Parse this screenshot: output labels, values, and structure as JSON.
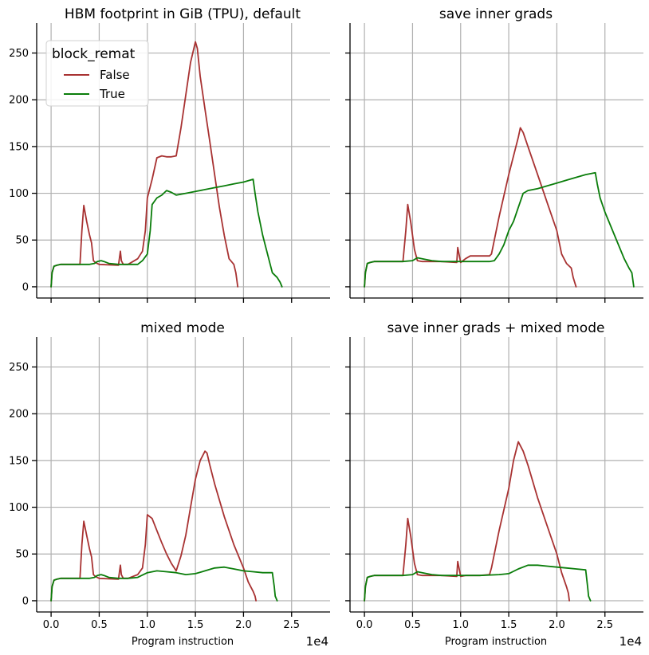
{
  "figure": {
    "x_offset_label": "1e4",
    "xlabel": "Program instruction"
  },
  "chart_data": [
    {
      "type": "line",
      "title": "HBM footprint in GiB (TPU), default",
      "xlabel": "",
      "ylabel": "",
      "xlim": [
        -0.15,
        2.9
      ],
      "ylim": [
        -12,
        282
      ],
      "xticks": [
        0.0,
        0.5,
        1.0,
        1.5,
        2.0,
        2.5
      ],
      "yticks": [
        0,
        50,
        100,
        150,
        200,
        250
      ],
      "show_yticklabels": true,
      "show_xticklabels": false,
      "grid": true,
      "legend": {
        "title": "block_remat",
        "placement": "top-left",
        "entries": [
          "False",
          "True"
        ]
      },
      "series": [
        {
          "name": "False",
          "color": "#a83232",
          "x": [
            0.0,
            0.01,
            0.03,
            0.06,
            0.1,
            0.15,
            0.2,
            0.25,
            0.3,
            0.32,
            0.34,
            0.37,
            0.4,
            0.42,
            0.44,
            0.46,
            0.5,
            0.7,
            0.72,
            0.73,
            0.75,
            0.8,
            0.9,
            0.95,
            0.98,
            1.0,
            1.05,
            1.1,
            1.15,
            1.2,
            1.25,
            1.3,
            1.35,
            1.4,
            1.45,
            1.5,
            1.52,
            1.55,
            1.6,
            1.65,
            1.7,
            1.75,
            1.8,
            1.85,
            1.9,
            1.92,
            1.94
          ],
          "y": [
            0,
            15,
            22,
            23,
            24,
            24,
            24,
            24,
            24,
            60,
            87,
            70,
            55,
            47,
            28,
            26,
            24,
            23,
            38,
            28,
            24,
            24,
            30,
            38,
            60,
            95,
            115,
            138,
            140,
            139,
            139,
            140,
            170,
            205,
            240,
            262,
            255,
            225,
            190,
            155,
            120,
            85,
            55,
            30,
            24,
            15,
            0
          ]
        },
        {
          "name": "True",
          "color": "#0a7d0a",
          "x": [
            0.0,
            0.01,
            0.03,
            0.06,
            0.1,
            0.2,
            0.3,
            0.4,
            0.45,
            0.48,
            0.52,
            0.55,
            0.6,
            0.7,
            0.8,
            0.9,
            0.95,
            1.0,
            1.03,
            1.05,
            1.1,
            1.15,
            1.2,
            1.25,
            1.3,
            1.4,
            1.5,
            1.6,
            1.7,
            1.8,
            1.9,
            2.0,
            2.1,
            2.12,
            2.15,
            2.2,
            2.3,
            2.35,
            2.38,
            2.4
          ],
          "y": [
            0,
            15,
            22,
            23,
            24,
            24,
            24,
            24,
            25,
            27,
            28,
            27,
            25,
            24,
            24,
            24,
            28,
            35,
            60,
            88,
            95,
            98,
            103,
            101,
            98,
            100,
            102,
            104,
            106,
            108,
            110,
            112,
            115,
            100,
            80,
            55,
            15,
            10,
            5,
            0
          ]
        }
      ]
    },
    {
      "type": "line",
      "title": "save inner grads",
      "xlabel": "",
      "ylabel": "",
      "xlim": [
        -0.15,
        2.9
      ],
      "ylim": [
        -12,
        282
      ],
      "xticks": [
        0.0,
        0.5,
        1.0,
        1.5,
        2.0,
        2.5
      ],
      "yticks": [
        0,
        50,
        100,
        150,
        200,
        250
      ],
      "show_yticklabels": false,
      "show_xticklabels": false,
      "grid": true,
      "series": [
        {
          "name": "False",
          "color": "#a83232",
          "x": [
            0.0,
            0.01,
            0.03,
            0.06,
            0.1,
            0.2,
            0.3,
            0.4,
            0.43,
            0.45,
            0.48,
            0.5,
            0.52,
            0.55,
            0.6,
            0.8,
            0.96,
            0.97,
            1.0,
            1.05,
            1.1,
            1.2,
            1.3,
            1.32,
            1.4,
            1.5,
            1.6,
            1.62,
            1.65,
            1.7,
            1.8,
            1.9,
            2.0,
            2.05,
            2.1,
            2.15,
            2.17,
            2.2
          ],
          "y": [
            0,
            15,
            25,
            26,
            27,
            27,
            27,
            27,
            60,
            88,
            70,
            55,
            40,
            28,
            27,
            27,
            26,
            42,
            26,
            30,
            33,
            33,
            33,
            35,
            75,
            120,
            160,
            170,
            165,
            150,
            120,
            90,
            60,
            35,
            25,
            20,
            10,
            0
          ]
        },
        {
          "name": "True",
          "color": "#0a7d0a",
          "x": [
            0.0,
            0.01,
            0.03,
            0.06,
            0.1,
            0.2,
            0.3,
            0.4,
            0.5,
            0.55,
            0.6,
            0.7,
            0.8,
            1.0,
            1.2,
            1.3,
            1.35,
            1.4,
            1.45,
            1.5,
            1.55,
            1.6,
            1.65,
            1.7,
            1.8,
            1.9,
            2.0,
            2.1,
            2.2,
            2.3,
            2.4,
            2.42,
            2.45,
            2.5,
            2.6,
            2.7,
            2.75,
            2.78,
            2.8
          ],
          "y": [
            0,
            15,
            25,
            26,
            27,
            27,
            27,
            27,
            28,
            31,
            30,
            28,
            27,
            27,
            27,
            27,
            28,
            35,
            45,
            60,
            70,
            85,
            100,
            103,
            105,
            108,
            111,
            114,
            117,
            120,
            122,
            110,
            95,
            80,
            55,
            30,
            20,
            15,
            0
          ]
        }
      ]
    },
    {
      "type": "line",
      "title": "mixed mode",
      "xlabel": "Program instruction",
      "ylabel": "",
      "xlim": [
        -0.15,
        2.9
      ],
      "ylim": [
        -12,
        282
      ],
      "xticks": [
        0.0,
        0.5,
        1.0,
        1.5,
        2.0,
        2.5
      ],
      "yticks": [
        0,
        50,
        100,
        150,
        200,
        250
      ],
      "show_yticklabels": true,
      "show_xticklabels": true,
      "grid": true,
      "series": [
        {
          "name": "False",
          "color": "#a83232",
          "x": [
            0.0,
            0.01,
            0.03,
            0.06,
            0.1,
            0.2,
            0.3,
            0.32,
            0.34,
            0.37,
            0.4,
            0.42,
            0.44,
            0.46,
            0.5,
            0.7,
            0.72,
            0.73,
            0.75,
            0.8,
            0.9,
            0.95,
            0.98,
            1.0,
            1.05,
            1.1,
            1.15,
            1.2,
            1.25,
            1.3,
            1.35,
            1.4,
            1.45,
            1.5,
            1.55,
            1.6,
            1.62,
            1.65,
            1.7,
            1.8,
            1.9,
            2.0,
            2.05,
            2.1,
            2.12,
            2.13
          ],
          "y": [
            0,
            15,
            22,
            23,
            24,
            24,
            24,
            60,
            85,
            70,
            55,
            47,
            28,
            26,
            24,
            23,
            38,
            28,
            24,
            24,
            28,
            35,
            60,
            92,
            88,
            75,
            62,
            50,
            40,
            32,
            48,
            70,
            100,
            130,
            150,
            160,
            158,
            145,
            125,
            90,
            60,
            35,
            20,
            10,
            5,
            0
          ]
        },
        {
          "name": "True",
          "color": "#0a7d0a",
          "x": [
            0.0,
            0.01,
            0.03,
            0.06,
            0.1,
            0.2,
            0.3,
            0.4,
            0.45,
            0.48,
            0.52,
            0.55,
            0.6,
            0.7,
            0.8,
            0.9,
            1.0,
            1.1,
            1.2,
            1.3,
            1.4,
            1.5,
            1.6,
            1.7,
            1.8,
            1.9,
            2.0,
            2.1,
            2.2,
            2.3,
            2.32,
            2.33,
            2.35
          ],
          "y": [
            0,
            15,
            22,
            23,
            24,
            24,
            24,
            24,
            25,
            27,
            28,
            27,
            25,
            24,
            24,
            25,
            30,
            32,
            31,
            30,
            28,
            29,
            32,
            35,
            36,
            34,
            32,
            31,
            30,
            30,
            15,
            5,
            0
          ]
        }
      ]
    },
    {
      "type": "line",
      "title": "save inner grads + mixed mode",
      "xlabel": "Program instruction",
      "ylabel": "",
      "xlim": [
        -0.15,
        2.9
      ],
      "ylim": [
        -12,
        282
      ],
      "xticks": [
        0.0,
        0.5,
        1.0,
        1.5,
        2.0,
        2.5
      ],
      "yticks": [
        0,
        50,
        100,
        150,
        200,
        250
      ],
      "show_yticklabels": false,
      "show_xticklabels": true,
      "grid": true,
      "series": [
        {
          "name": "False",
          "color": "#a83232",
          "x": [
            0.0,
            0.01,
            0.03,
            0.06,
            0.1,
            0.2,
            0.3,
            0.4,
            0.43,
            0.45,
            0.48,
            0.5,
            0.52,
            0.55,
            0.6,
            0.8,
            0.96,
            0.97,
            1.0,
            1.05,
            1.1,
            1.2,
            1.3,
            1.32,
            1.4,
            1.5,
            1.55,
            1.6,
            1.65,
            1.7,
            1.8,
            1.9,
            2.0,
            2.05,
            2.1,
            2.12,
            2.13
          ],
          "y": [
            0,
            15,
            25,
            26,
            27,
            27,
            27,
            27,
            60,
            88,
            70,
            55,
            40,
            28,
            27,
            27,
            26,
            42,
            26,
            27,
            27,
            27,
            28,
            35,
            75,
            120,
            150,
            170,
            160,
            145,
            110,
            80,
            50,
            30,
            15,
            8,
            0
          ]
        },
        {
          "name": "True",
          "color": "#0a7d0a",
          "x": [
            0.0,
            0.01,
            0.03,
            0.06,
            0.1,
            0.2,
            0.3,
            0.4,
            0.5,
            0.55,
            0.6,
            0.7,
            0.8,
            1.0,
            1.2,
            1.4,
            1.5,
            1.6,
            1.7,
            1.8,
            1.9,
            2.0,
            2.1,
            2.2,
            2.3,
            2.32,
            2.33,
            2.35
          ],
          "y": [
            0,
            15,
            25,
            26,
            27,
            27,
            27,
            27,
            28,
            31,
            30,
            28,
            27,
            27,
            27,
            28,
            29,
            34,
            38,
            38,
            37,
            36,
            35,
            34,
            33,
            15,
            5,
            0
          ]
        }
      ]
    }
  ]
}
